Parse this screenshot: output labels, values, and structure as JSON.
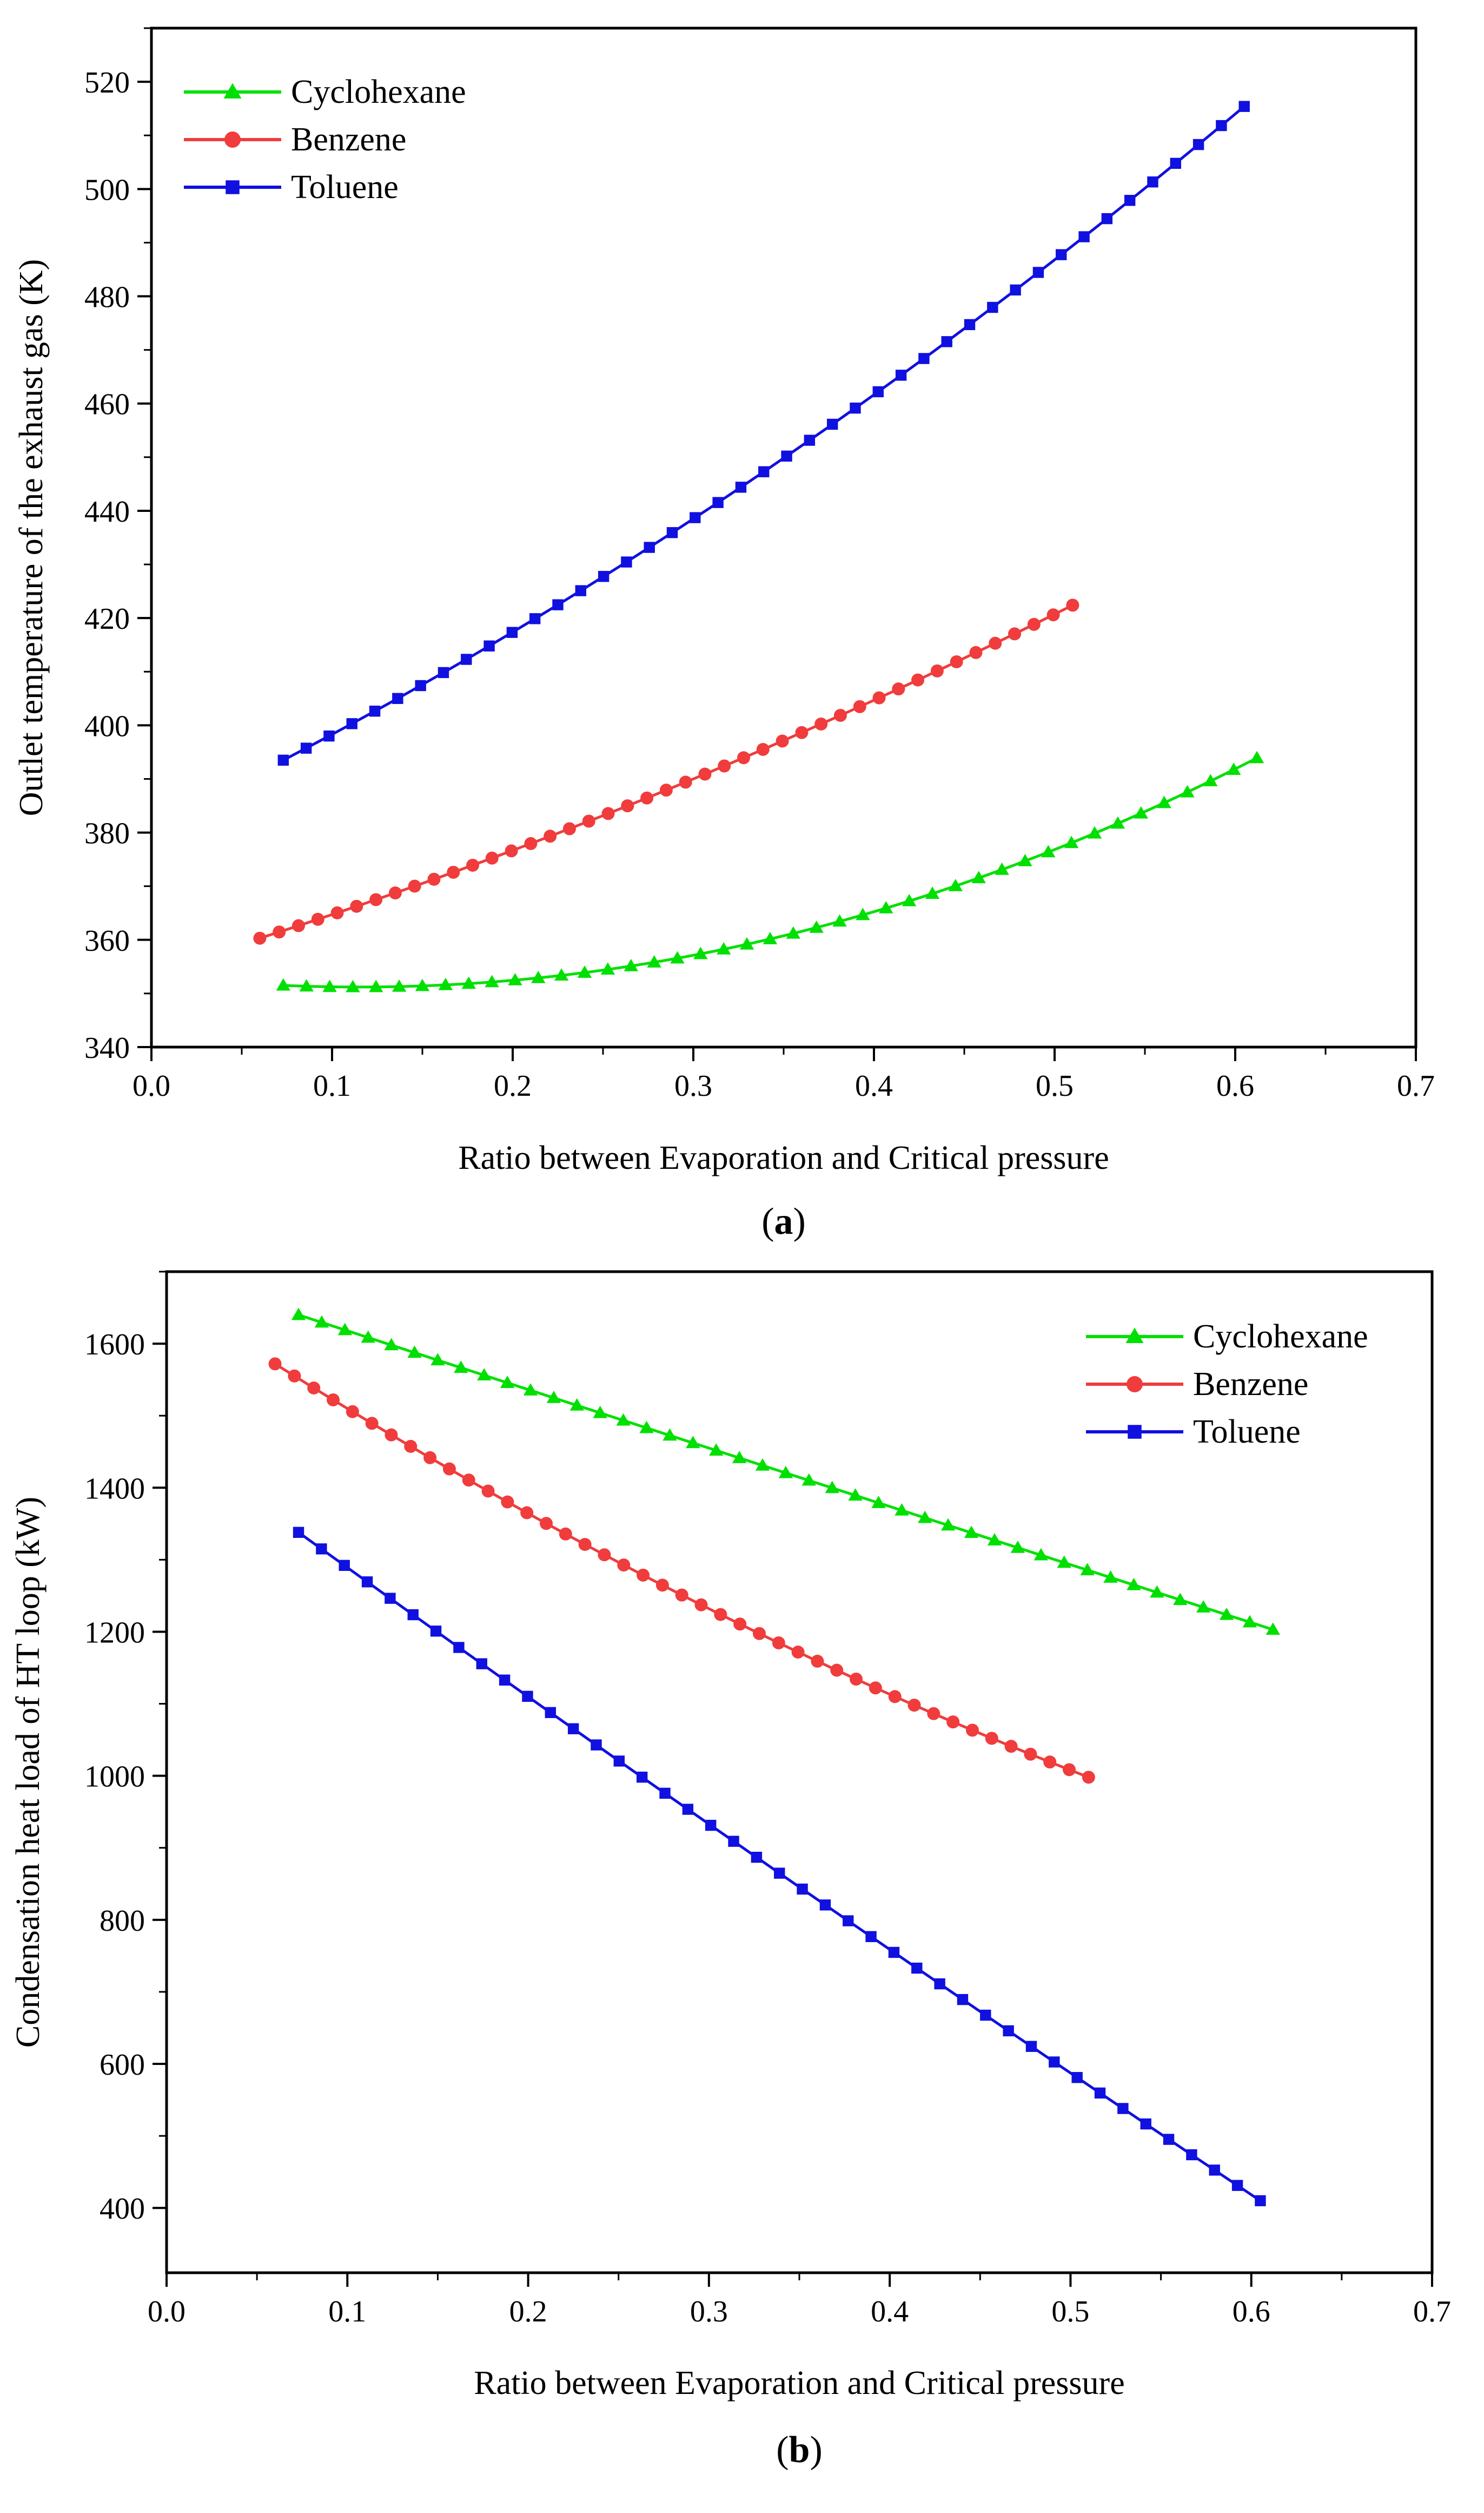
{
  "chart_data": [
    {
      "id": "a",
      "type": "line",
      "caption_letter": "a",
      "xlabel": "Ratio between Evaporation and Critical pressure",
      "ylabel": "Outlet temperature of the exhaust gas (K)",
      "xlim": [
        0.0,
        0.7
      ],
      "ylim": [
        340,
        530
      ],
      "xticks": [
        "0.0",
        "0.1",
        "0.2",
        "0.3",
        "0.4",
        "0.5",
        "0.6",
        "0.7"
      ],
      "yticks": [
        "340",
        "360",
        "380",
        "400",
        "420",
        "440",
        "460",
        "480",
        "500",
        "520"
      ],
      "legend_position": "top-left",
      "series": [
        {
          "name": "Cyclohexane",
          "color": "#00e000",
          "marker": "triangle",
          "start": 0.073,
          "end": 0.612,
          "points": 43,
          "fit": "quad",
          "anchors": [
            [
              0.073,
              351.5
            ],
            [
              0.3,
              361.5
            ],
            [
              0.612,
              393.9
            ]
          ],
          "vertex": 0.115
        },
        {
          "name": "Benzene",
          "color": "#f03c3c",
          "marker": "circle",
          "start": 0.06,
          "end": 0.51,
          "points": 43,
          "fit": "quad3",
          "anchors": [
            [
              0.06,
              360.3
            ],
            [
              0.3,
              390.0
            ],
            [
              0.51,
              422.4
            ]
          ]
        },
        {
          "name": "Toluene",
          "color": "#1010e0",
          "marker": "square",
          "start": 0.073,
          "end": 0.605,
          "points": 43,
          "fit": "quad3",
          "anchors": [
            [
              0.073,
              393.5
            ],
            [
              0.3,
              438.5
            ],
            [
              0.605,
              515.4
            ]
          ]
        }
      ]
    },
    {
      "id": "b",
      "type": "line",
      "caption_letter": "b",
      "xlabel": "Ratio between Evaporation and Critical pressure",
      "ylabel": "Condensation heat load of HT loop (kW)",
      "xlim": [
        0.0,
        0.7
      ],
      "ylim": [
        310,
        1700
      ],
      "xticks": [
        "0.0",
        "0.1",
        "0.2",
        "0.3",
        "0.4",
        "0.5",
        "0.6",
        "0.7"
      ],
      "yticks": [
        "400",
        "600",
        "800",
        "1000",
        "1200",
        "1400",
        "1600"
      ],
      "legend_position": "top-right",
      "series": [
        {
          "name": "Cyclohexane",
          "color": "#00e000",
          "marker": "triangle",
          "start": 0.073,
          "end": 0.612,
          "points": 43,
          "fit": "quad3",
          "anchors": [
            [
              0.073,
              1640
            ],
            [
              0.3,
              1455
            ],
            [
              0.612,
              1203
            ]
          ]
        },
        {
          "name": "Benzene",
          "color": "#f03c3c",
          "marker": "circle",
          "start": 0.06,
          "end": 0.51,
          "points": 43,
          "fit": "quad3",
          "anchors": [
            [
              0.06,
              1572
            ],
            [
              0.3,
              1232
            ],
            [
              0.51,
              998
            ]
          ]
        },
        {
          "name": "Toluene",
          "color": "#1010e0",
          "marker": "square",
          "start": 0.073,
          "end": 0.605,
          "points": 43,
          "fit": "quad3",
          "anchors": [
            [
              0.073,
              1338
            ],
            [
              0.3,
              933
            ],
            [
              0.605,
              410
            ]
          ]
        }
      ]
    }
  ]
}
